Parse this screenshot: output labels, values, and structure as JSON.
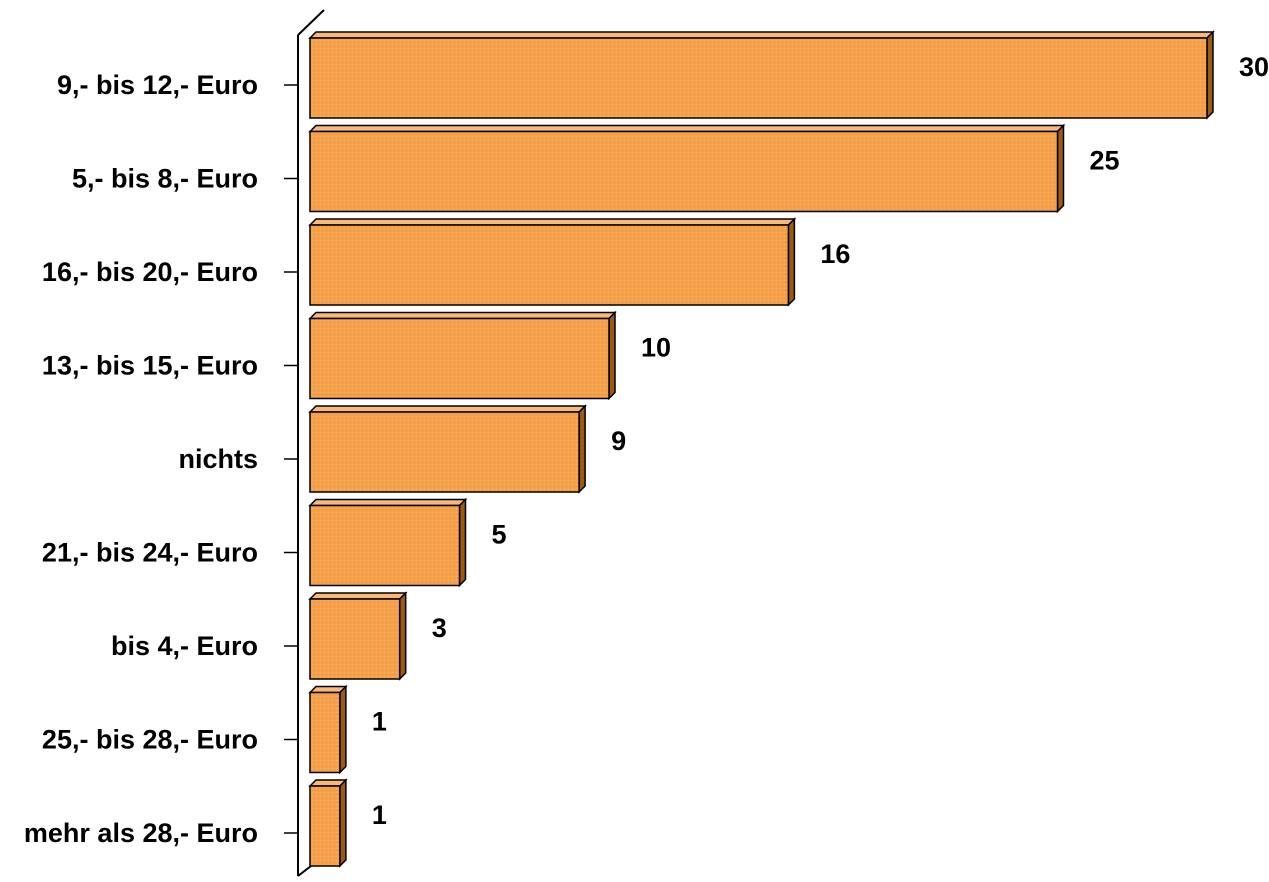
{
  "chart_data": {
    "type": "bar",
    "orientation": "horizontal",
    "categories": [
      "9,- bis 12,- Euro",
      "5,- bis 8,- Euro",
      "16,- bis 20,- Euro",
      "13,- bis 15,- Euro",
      "nichts",
      "21,- bis 24,- Euro",
      "bis 4,- Euro",
      "25,- bis 28,- Euro",
      "mehr als 28,- Euro"
    ],
    "values": [
      30,
      25,
      16,
      10,
      9,
      5,
      3,
      1,
      1
    ],
    "value_labels": [
      "30",
      "25",
      "16",
      "10",
      "9",
      "5",
      "3",
      "1",
      "1"
    ],
    "xlim": [
      0,
      30
    ],
    "grid": false,
    "legend": "none",
    "style": "3d",
    "colors": {
      "bar_front": "#F5A04A",
      "bar_top": "#F8B877",
      "bar_side": "#9A5A12",
      "outline": "#000000",
      "axis": "#000000"
    }
  }
}
